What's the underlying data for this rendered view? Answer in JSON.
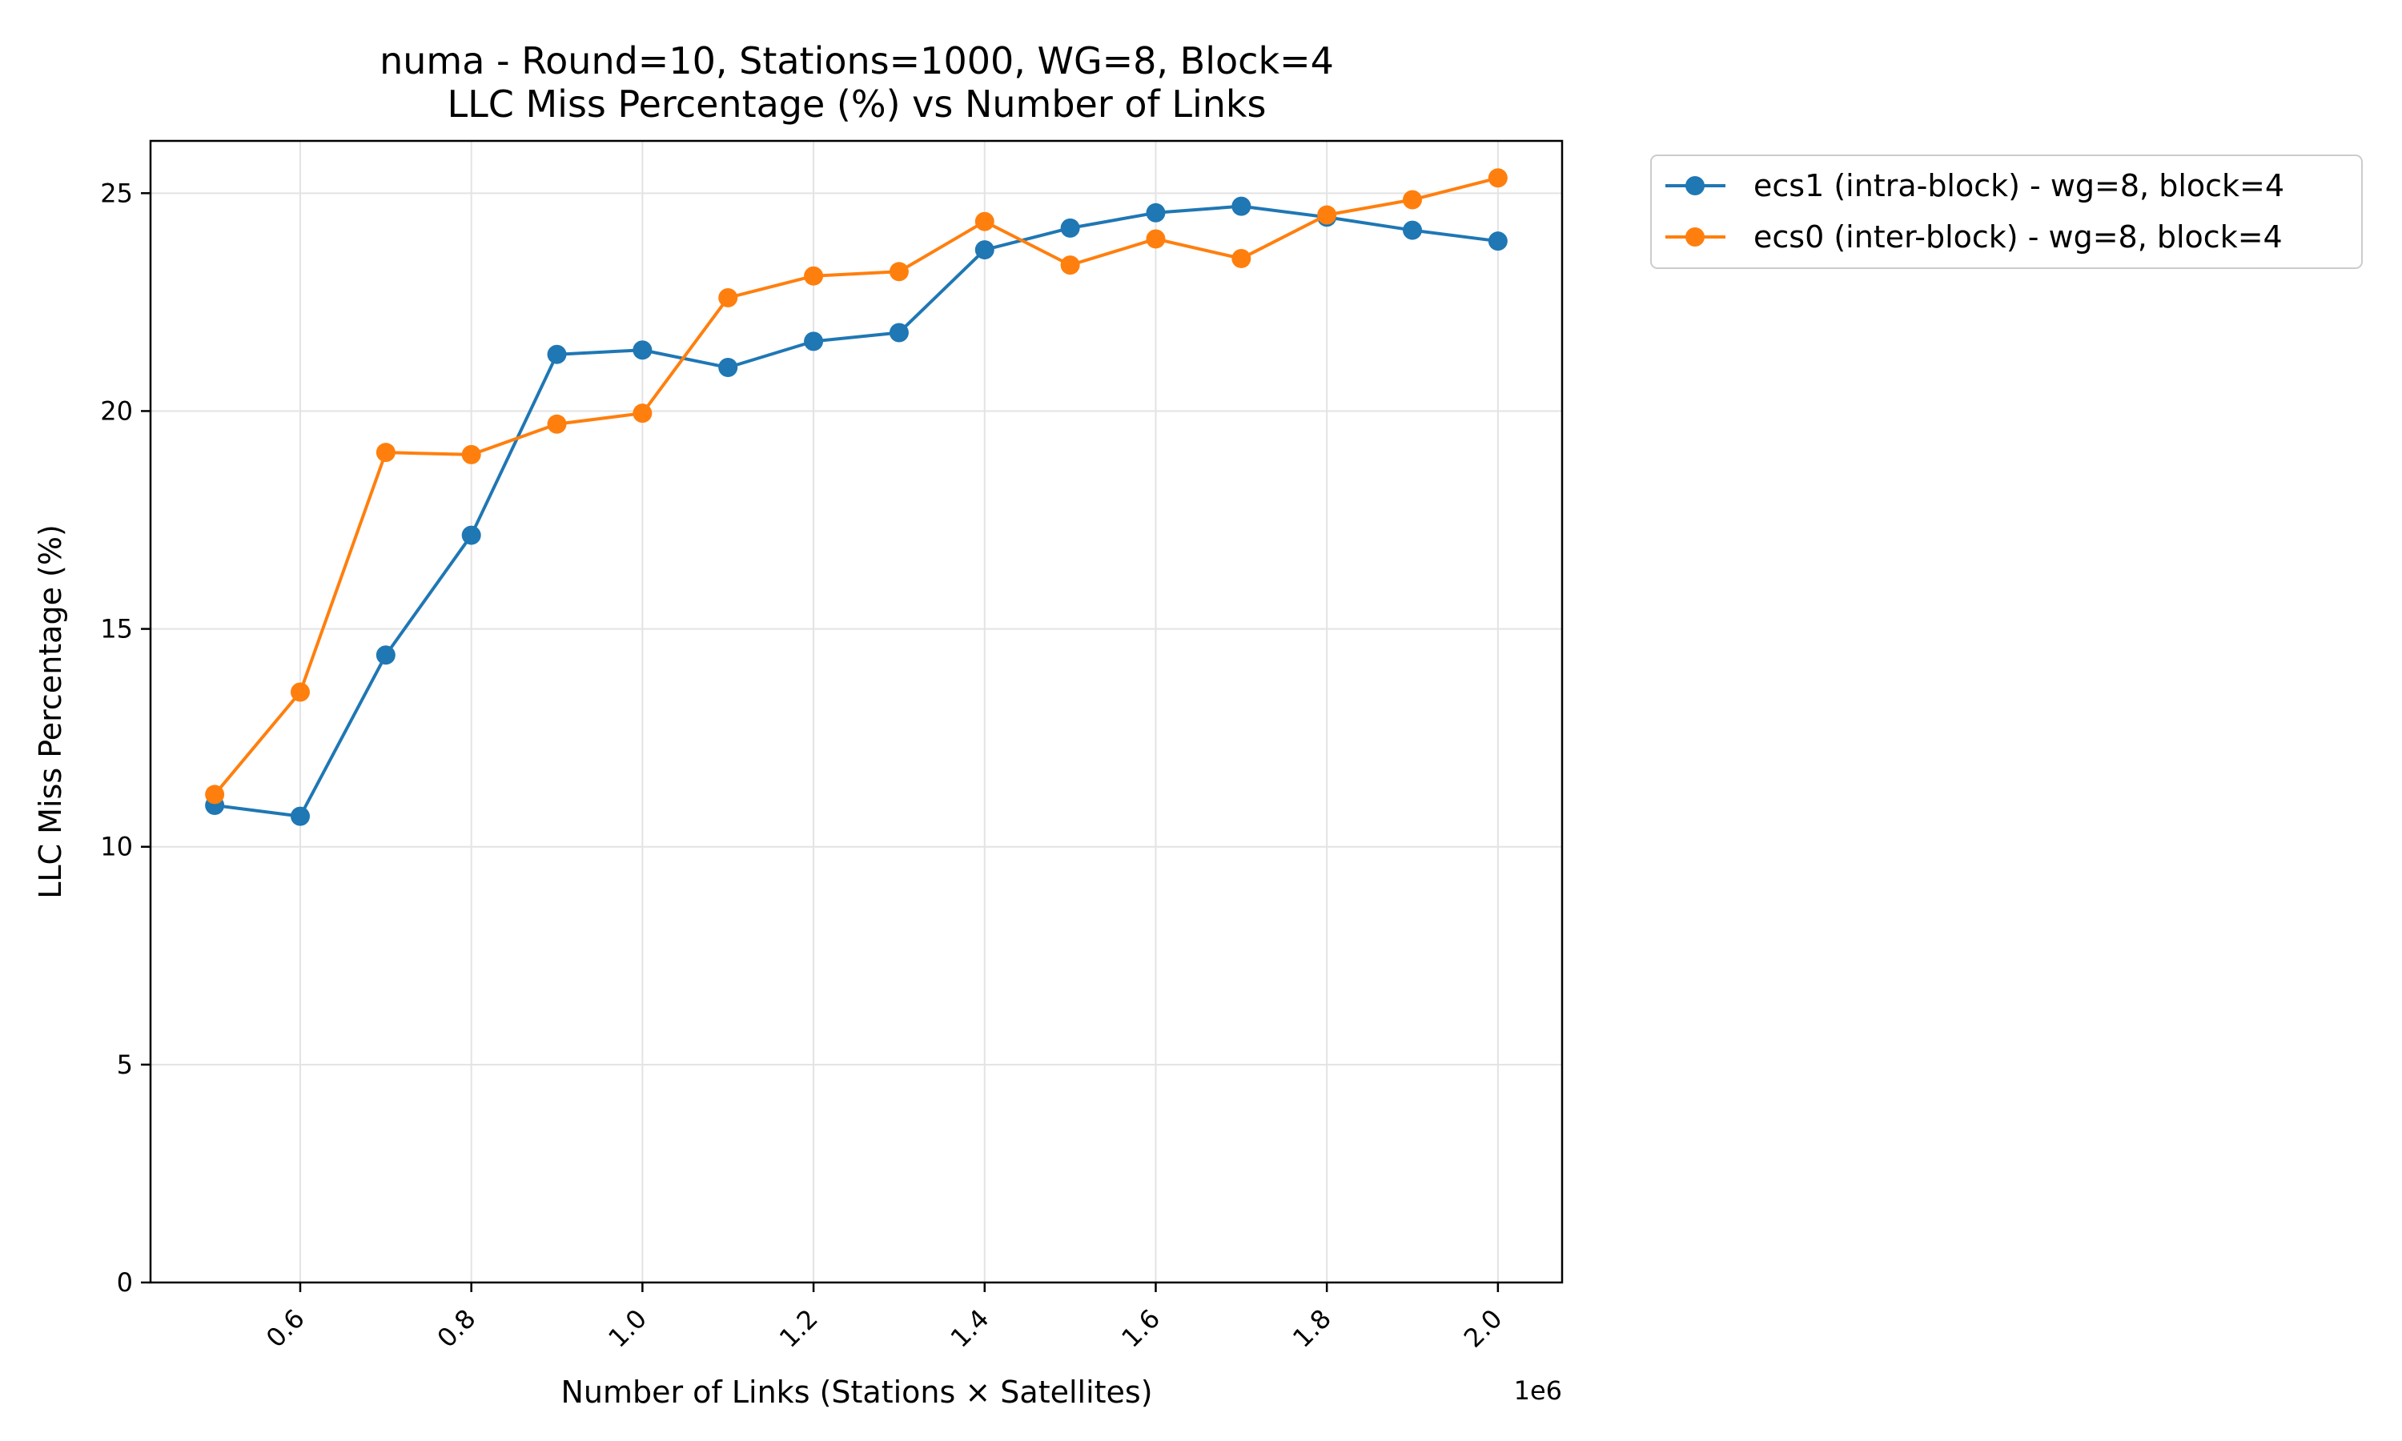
{
  "chart_data": {
    "type": "line",
    "title_line1": "numa - Round=10, Stations=1000, WG=8, Block=4",
    "title_line2": "LLC Miss Percentage (%) vs Number of Links",
    "xlabel": "Number of Links (Stations × Satellites)",
    "ylabel": "LLC Miss Percentage (%)",
    "x_offset_label": "1e6",
    "x": [
      500000,
      600000,
      700000,
      800000,
      900000,
      1000000,
      1100000,
      1200000,
      1300000,
      1400000,
      1500000,
      1600000,
      1700000,
      1800000,
      1900000,
      2000000
    ],
    "xlim": [
      425000,
      2075000
    ],
    "ylim": [
      0,
      26.2
    ],
    "x_ticks": [
      600000,
      800000,
      1000000,
      1200000,
      1400000,
      1600000,
      1800000,
      2000000
    ],
    "x_tick_labels": [
      "0.6",
      "0.8",
      "1.0",
      "1.2",
      "1.4",
      "1.6",
      "1.8",
      "2.0"
    ],
    "y_ticks": [
      0,
      5,
      10,
      15,
      20,
      25
    ],
    "y_tick_labels": [
      "0",
      "5",
      "10",
      "15",
      "20",
      "25"
    ],
    "grid": true,
    "legend_position": "outside-upper-right",
    "series": [
      {
        "name": "ecs1 (intra-block) - wg=8, block=4",
        "color": "#1f77b4",
        "values": [
          10.95,
          10.7,
          14.4,
          17.15,
          21.3,
          21.4,
          21.0,
          21.6,
          21.8,
          23.7,
          24.2,
          24.55,
          24.7,
          24.45,
          24.15,
          23.9
        ]
      },
      {
        "name": "ecs0 (inter-block) - wg=8, block=4",
        "color": "#ff7f0e",
        "values": [
          11.2,
          13.55,
          19.05,
          19.0,
          19.7,
          19.95,
          22.6,
          23.1,
          23.2,
          24.35,
          23.35,
          23.95,
          23.5,
          24.5,
          24.85,
          25.35
        ]
      }
    ]
  }
}
